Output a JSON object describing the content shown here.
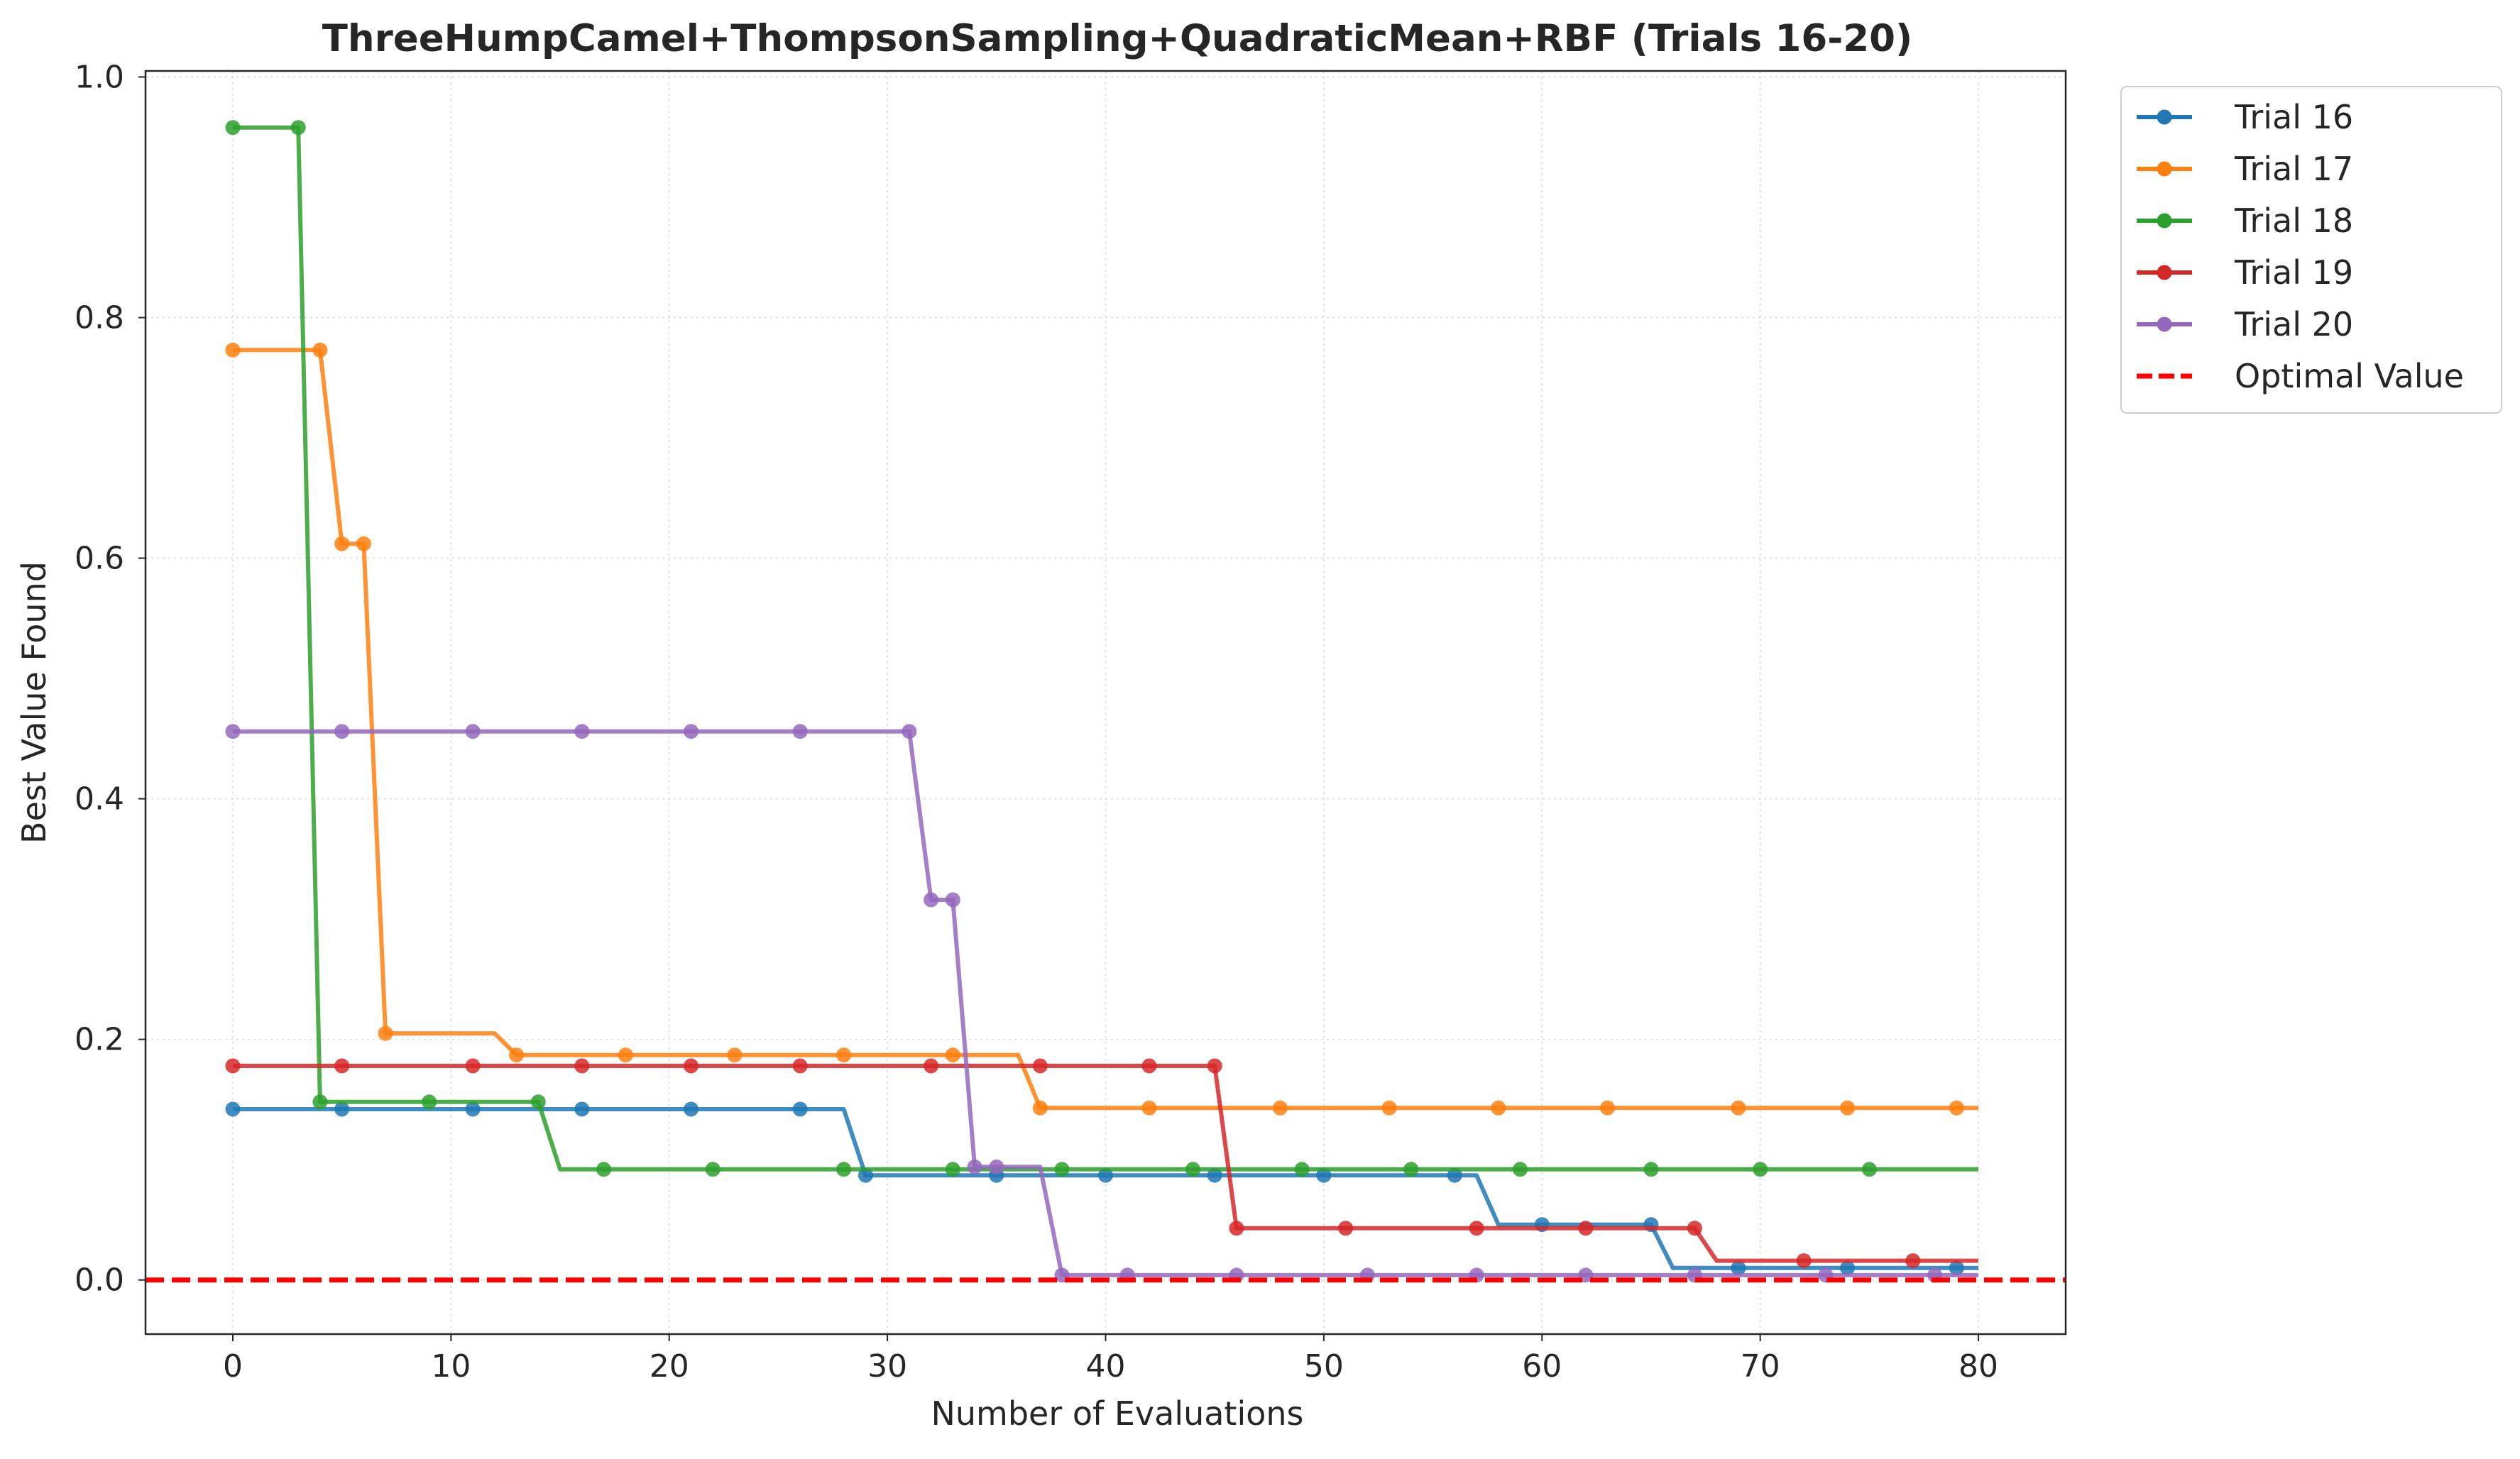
{
  "chart_data": {
    "type": "line",
    "title": "ThreeHumpCamel+ThompsonSampling+QuadraticMean+RBF (Trials 16-20)",
    "xlabel": "Number of Evaluations",
    "ylabel": "Best Value Found",
    "xlim": [
      -4,
      84
    ],
    "ylim": [
      -0.045,
      1.005
    ],
    "xticks": [
      0,
      10,
      20,
      30,
      40,
      50,
      60,
      70,
      80
    ],
    "xtick_labels": [
      "0",
      "10",
      "20",
      "30",
      "40",
      "50",
      "60",
      "70",
      "80"
    ],
    "yticks": [
      0.0,
      0.2,
      0.4,
      0.6,
      0.8,
      1.0
    ],
    "ytick_labels": [
      "0.0",
      "0.2",
      "0.4",
      "0.6",
      "0.8",
      "1.0"
    ],
    "grid": true,
    "legend_position": "outside top-right",
    "series": [
      {
        "name": "Trial 16",
        "color": "#1f77b4",
        "steps": [
          [
            0,
            0.142
          ],
          [
            28,
            0.142
          ],
          [
            29,
            0.087
          ],
          [
            57,
            0.087
          ],
          [
            58,
            0.046
          ],
          [
            65,
            0.046
          ],
          [
            66,
            0.01
          ],
          [
            80,
            0.01
          ]
        ],
        "markers": [
          [
            0,
            0.142
          ],
          [
            5,
            0.142
          ],
          [
            11,
            0.142
          ],
          [
            16,
            0.142
          ],
          [
            21,
            0.142
          ],
          [
            26,
            0.142
          ],
          [
            29,
            0.087
          ],
          [
            35,
            0.087
          ],
          [
            40,
            0.087
          ],
          [
            45,
            0.087
          ],
          [
            50,
            0.087
          ],
          [
            56,
            0.087
          ],
          [
            60,
            0.046
          ],
          [
            65,
            0.046
          ],
          [
            69,
            0.01
          ],
          [
            74,
            0.01
          ],
          [
            79,
            0.01
          ]
        ]
      },
      {
        "name": "Trial 17",
        "color": "#ff7f0e",
        "steps": [
          [
            0,
            0.773
          ],
          [
            4,
            0.773
          ],
          [
            5,
            0.612
          ],
          [
            6,
            0.612
          ],
          [
            7,
            0.205
          ],
          [
            12,
            0.205
          ],
          [
            13,
            0.187
          ],
          [
            36,
            0.187
          ],
          [
            37,
            0.143
          ],
          [
            80,
            0.143
          ]
        ],
        "markers": [
          [
            0,
            0.773
          ],
          [
            4,
            0.773
          ],
          [
            5,
            0.612
          ],
          [
            6,
            0.612
          ],
          [
            7,
            0.205
          ],
          [
            13,
            0.187
          ],
          [
            18,
            0.187
          ],
          [
            23,
            0.187
          ],
          [
            28,
            0.187
          ],
          [
            33,
            0.187
          ],
          [
            37,
            0.143
          ],
          [
            42,
            0.143
          ],
          [
            48,
            0.143
          ],
          [
            53,
            0.143
          ],
          [
            58,
            0.143
          ],
          [
            63,
            0.143
          ],
          [
            69,
            0.143
          ],
          [
            74,
            0.143
          ],
          [
            79,
            0.143
          ]
        ]
      },
      {
        "name": "Trial 18",
        "color": "#2ca02c",
        "steps": [
          [
            0,
            0.958
          ],
          [
            3,
            0.958
          ],
          [
            4,
            0.148
          ],
          [
            14,
            0.148
          ],
          [
            15,
            0.092
          ],
          [
            80,
            0.092
          ]
        ],
        "markers": [
          [
            0,
            0.958
          ],
          [
            3,
            0.958
          ],
          [
            4,
            0.148
          ],
          [
            9,
            0.148
          ],
          [
            14,
            0.148
          ],
          [
            17,
            0.092
          ],
          [
            22,
            0.092
          ],
          [
            28,
            0.092
          ],
          [
            33,
            0.092
          ],
          [
            38,
            0.092
          ],
          [
            44,
            0.092
          ],
          [
            49,
            0.092
          ],
          [
            54,
            0.092
          ],
          [
            59,
            0.092
          ],
          [
            65,
            0.092
          ],
          [
            70,
            0.092
          ],
          [
            75,
            0.092
          ]
        ]
      },
      {
        "name": "Trial 19",
        "color": "#d62728",
        "steps": [
          [
            0,
            0.178
          ],
          [
            45,
            0.178
          ],
          [
            46,
            0.043
          ],
          [
            67,
            0.043
          ],
          [
            68,
            0.016
          ],
          [
            80,
            0.016
          ]
        ],
        "markers": [
          [
            0,
            0.178
          ],
          [
            5,
            0.178
          ],
          [
            11,
            0.178
          ],
          [
            16,
            0.178
          ],
          [
            21,
            0.178
          ],
          [
            26,
            0.178
          ],
          [
            32,
            0.178
          ],
          [
            37,
            0.178
          ],
          [
            42,
            0.178
          ],
          [
            45,
            0.178
          ],
          [
            46,
            0.043
          ],
          [
            51,
            0.043
          ],
          [
            57,
            0.043
          ],
          [
            62,
            0.043
          ],
          [
            67,
            0.043
          ],
          [
            72,
            0.016
          ],
          [
            77,
            0.016
          ]
        ]
      },
      {
        "name": "Trial 20",
        "color": "#9467bd",
        "steps": [
          [
            0,
            0.456
          ],
          [
            31,
            0.456
          ],
          [
            32,
            0.316
          ],
          [
            33,
            0.316
          ],
          [
            34,
            0.094
          ],
          [
            37,
            0.094
          ],
          [
            38,
            0.004
          ],
          [
            80,
            0.004
          ]
        ],
        "markers": [
          [
            0,
            0.456
          ],
          [
            5,
            0.456
          ],
          [
            11,
            0.456
          ],
          [
            16,
            0.456
          ],
          [
            21,
            0.456
          ],
          [
            26,
            0.456
          ],
          [
            31,
            0.456
          ],
          [
            32,
            0.316
          ],
          [
            33,
            0.316
          ],
          [
            34,
            0.094
          ],
          [
            35,
            0.094
          ],
          [
            38,
            0.004
          ],
          [
            41,
            0.004
          ],
          [
            46,
            0.004
          ],
          [
            52,
            0.004
          ],
          [
            57,
            0.004
          ],
          [
            62,
            0.004
          ],
          [
            67,
            0.004
          ],
          [
            73,
            0.004
          ],
          [
            78,
            0.004
          ]
        ]
      }
    ],
    "reference_line": {
      "name": "Optimal Value",
      "y": 0.0,
      "color": "#ff0000",
      "style": "dashed"
    }
  }
}
